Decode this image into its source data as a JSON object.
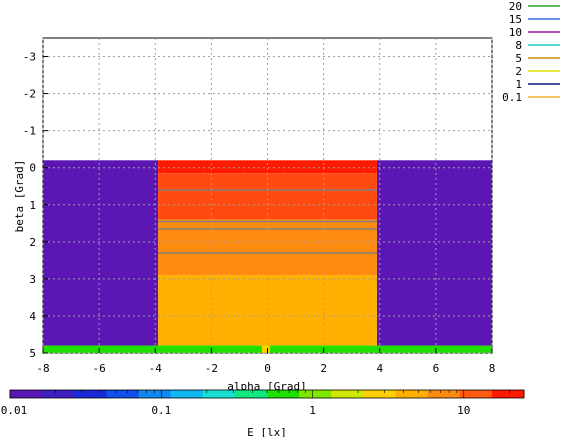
{
  "chart_data": {
    "type": "heatmap",
    "title": "",
    "xlabel": "alpha [Grad]",
    "ylabel": "beta [Grad]",
    "xlim": [
      -8,
      8
    ],
    "ylim": [
      5,
      -3.5
    ],
    "xticks": [
      "-8",
      "-6",
      "-4",
      "-2",
      "0",
      "2",
      "4",
      "6",
      "8"
    ],
    "yticks": [
      "-3",
      "-2",
      "-1",
      "0",
      "1",
      "2",
      "3",
      "4",
      "5"
    ],
    "grid": true,
    "colorbar": {
      "label": "E [lx]",
      "scale": "log",
      "range": [
        0.01,
        25
      ],
      "ticks": [
        "0.01",
        "0.1",
        "1",
        "10"
      ]
    },
    "legend": {
      "placement": "top-right outside",
      "entries": [
        {
          "label": "20",
          "color": "#2aa02a"
        },
        {
          "label": "15",
          "color": "#3a6fe0"
        },
        {
          "label": "10",
          "color": "#a010a0"
        },
        {
          "label": "8",
          "color": "#20c8c8"
        },
        {
          "label": "5",
          "color": "#d08c10"
        },
        {
          "label": "2",
          "color": "#e0e000"
        },
        {
          "label": "1",
          "color": "#101080"
        },
        {
          "label": "0.1",
          "color": "#f0b030"
        }
      ]
    },
    "regions": [
      {
        "x": [
          -8,
          -3.9
        ],
        "y": [
          -0.2,
          4.8
        ],
        "value": 0.01,
        "color": "#5b16b4"
      },
      {
        "x": [
          3.9,
          8
        ],
        "y": [
          -0.2,
          4.8
        ],
        "value": 0.01,
        "color": "#5b16b4"
      },
      {
        "x": [
          -3.9,
          3.9
        ],
        "y": [
          -0.2,
          0.15
        ],
        "value": 25,
        "color": "#ff1a00"
      },
      {
        "x": [
          -3.9,
          3.9
        ],
        "y": [
          0.15,
          1.4
        ],
        "value": 18,
        "color": "#ff4a10"
      },
      {
        "x": [
          -3.9,
          3.9
        ],
        "y": [
          1.4,
          2.9
        ],
        "value": 12,
        "color": "#ff8a10"
      },
      {
        "x": [
          -3.9,
          3.9
        ],
        "y": [
          2.9,
          4.8
        ],
        "value": 6,
        "color": "#ffb000"
      },
      {
        "x": [
          -8,
          8
        ],
        "y": [
          4.8,
          5.0
        ],
        "value": 1.5,
        "color": "#20e000"
      }
    ],
    "contour_lines": [
      {
        "y": 0.6,
        "color": "#808080"
      },
      {
        "y": 1.45,
        "color": "#808080"
      },
      {
        "y": 1.65,
        "color": "#808080"
      },
      {
        "y": 2.3,
        "color": "#808080"
      }
    ]
  }
}
